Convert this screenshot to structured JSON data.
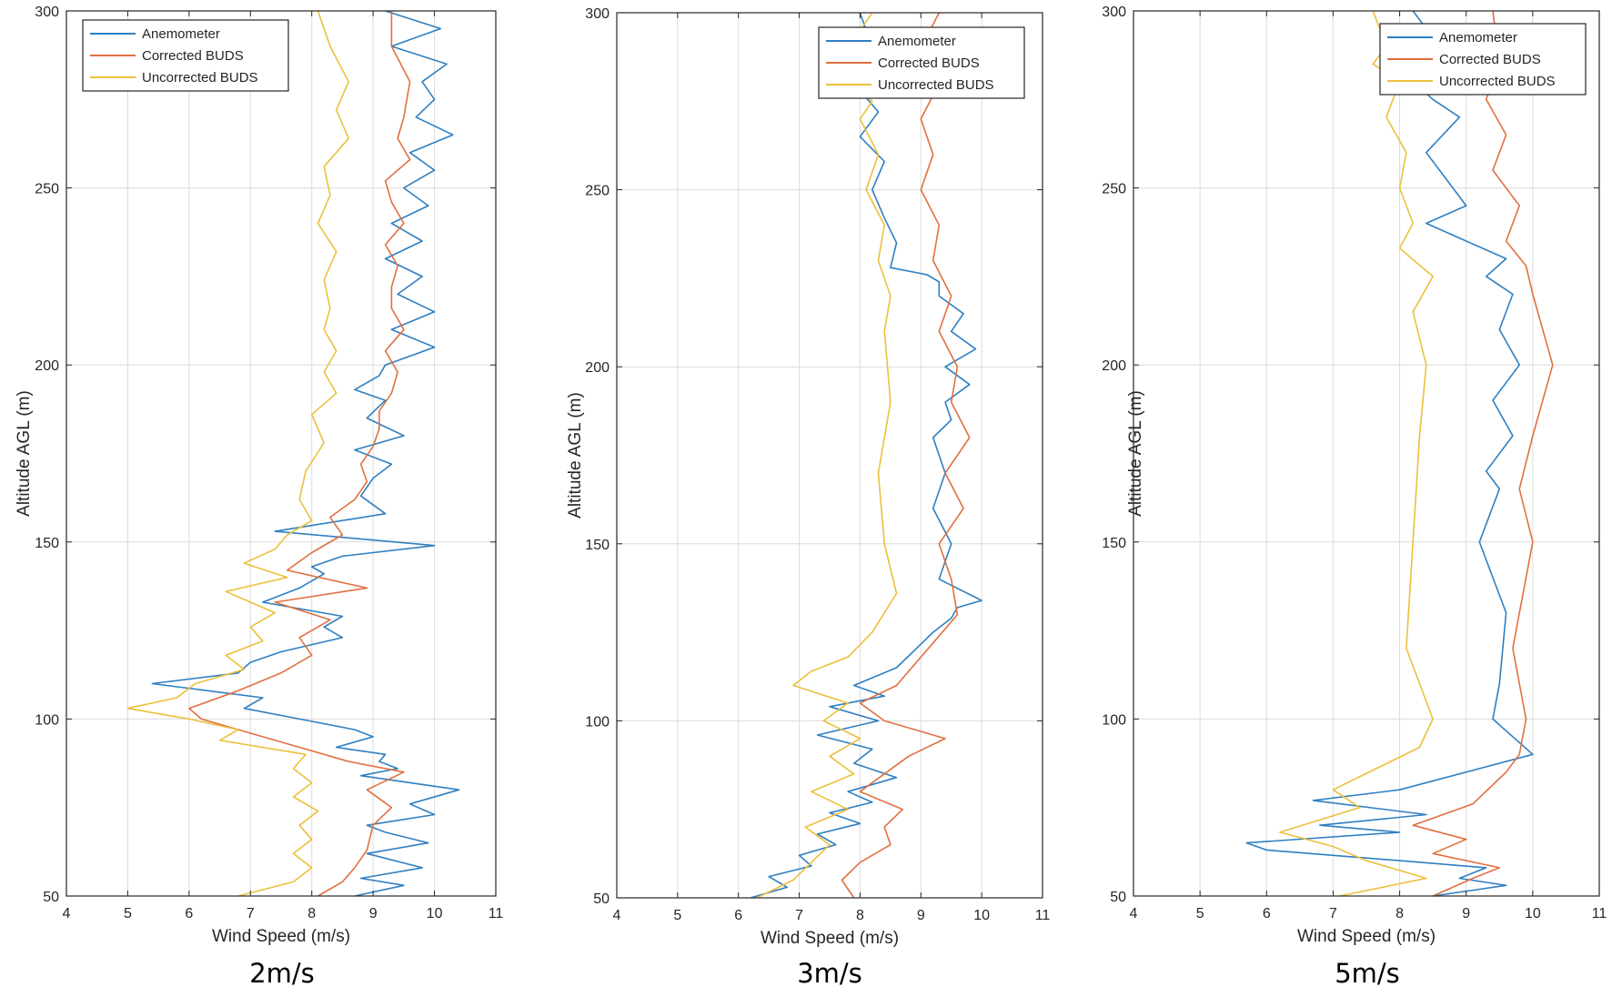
{
  "figure": {
    "colors": {
      "anemometer": "#2f7fc1",
      "corrected": "#e07040",
      "uncorrected": "#ecc03c",
      "axis": "#262626",
      "grid": "#dcdcdc"
    }
  },
  "chart_data": [
    {
      "type": "line",
      "caption": "2m/s",
      "xlabel": "Wind Speed (m/s)",
      "ylabel": "Altitude AGL (m)",
      "xlim": [
        4,
        11
      ],
      "ylim": [
        50,
        300
      ],
      "xticks": [
        4,
        5,
        6,
        7,
        8,
        9,
        10,
        11
      ],
      "yticks": [
        50,
        100,
        150,
        200,
        250,
        300
      ],
      "grid": true,
      "legend_position": "top-left",
      "series": [
        {
          "name": "Anemometer",
          "color": "#2f7fc1",
          "wind_speed": [
            8.7,
            9.5,
            8.8,
            9.8,
            8.9,
            9.9,
            9.2,
            8.9,
            10.0,
            9.6,
            10.4,
            8.8,
            9.4,
            9.1,
            9.2,
            8.4,
            9.0,
            8.7,
            7.8,
            6.9,
            7.2,
            5.4,
            6.8,
            7.0,
            7.5,
            8.5,
            8.2,
            8.5,
            7.2,
            7.8,
            8.2,
            8.0,
            8.5,
            10.0,
            7.4,
            9.2,
            8.8,
            9.0,
            9.3,
            8.7,
            9.5,
            8.9,
            9.2,
            8.7,
            9.1,
            9.2,
            10.0,
            9.3,
            10.0,
            9.4,
            9.8,
            9.2,
            9.8,
            9.3,
            9.9,
            9.5,
            10.0,
            9.6,
            10.3,
            9.7,
            10.0,
            9.8,
            10.2,
            9.3,
            10.1,
            9.2
          ],
          "altitude": [
            50,
            53,
            55,
            58,
            62,
            65,
            68,
            70,
            73,
            76,
            80,
            84,
            86,
            88,
            90,
            92,
            95,
            97,
            100,
            103,
            106,
            110,
            113,
            116,
            119,
            123,
            126,
            129,
            133,
            137,
            141,
            143,
            146,
            149,
            153,
            158,
            163,
            168,
            172,
            176,
            180,
            185,
            190,
            193,
            197,
            200,
            205,
            210,
            215,
            220,
            225,
            230,
            235,
            240,
            245,
            250,
            255,
            260,
            265,
            270,
            275,
            280,
            285,
            290,
            295,
            300
          ]
        },
        {
          "name": "Corrected BUDS",
          "color": "#e07040",
          "wind_speed": [
            8.1,
            8.5,
            8.7,
            8.9,
            9.0,
            9.3,
            8.9,
            9.5,
            8.6,
            7.8,
            7.0,
            6.2,
            6.0,
            6.8,
            7.5,
            8.0,
            7.8,
            8.3,
            7.4,
            8.9,
            7.6,
            8.0,
            8.5,
            8.3,
            8.7,
            8.9,
            8.8,
            9.0,
            9.1,
            9.1,
            9.3,
            9.4,
            9.2,
            9.5,
            9.3,
            9.3,
            9.4,
            9.2,
            9.5,
            9.3,
            9.2,
            9.6,
            9.4,
            9.5,
            9.6,
            9.3,
            9.3
          ],
          "altitude": [
            50,
            54,
            58,
            63,
            70,
            75,
            80,
            85,
            88,
            92,
            96,
            100,
            103,
            108,
            113,
            118,
            123,
            128,
            133,
            137,
            142,
            147,
            152,
            157,
            162,
            167,
            172,
            177,
            182,
            187,
            192,
            198,
            204,
            210,
            216,
            222,
            228,
            234,
            240,
            246,
            252,
            258,
            264,
            270,
            280,
            290,
            300
          ]
        },
        {
          "name": "Uncorrected BUDS",
          "color": "#ecc03c",
          "wind_speed": [
            6.8,
            7.7,
            8.0,
            7.7,
            8.0,
            7.8,
            8.1,
            7.7,
            8.0,
            7.7,
            7.9,
            6.5,
            6.8,
            6.0,
            5.0,
            5.8,
            6.1,
            6.9,
            6.6,
            7.2,
            7.0,
            7.4,
            6.6,
            7.6,
            6.9,
            7.4,
            7.6,
            8.0,
            7.8,
            7.9,
            8.2,
            8.0,
            8.4,
            8.2,
            8.4,
            8.2,
            8.3,
            8.2,
            8.4,
            8.1,
            8.3,
            8.2,
            8.6,
            8.4,
            8.6,
            8.3,
            8.1
          ],
          "altitude": [
            50,
            54,
            58,
            62,
            66,
            70,
            74,
            78,
            82,
            86,
            90,
            94,
            97,
            100,
            103,
            106,
            110,
            114,
            118,
            122,
            126,
            130,
            136,
            140,
            144,
            148,
            152,
            156,
            162,
            170,
            178,
            186,
            192,
            198,
            204,
            210,
            216,
            224,
            232,
            240,
            248,
            256,
            264,
            272,
            280,
            290,
            300
          ]
        }
      ]
    },
    {
      "type": "line",
      "caption": "3m/s",
      "xlabel": "Wind Speed (m/s)",
      "ylabel": "Altitude AGL (m)",
      "xlim": [
        4,
        11
      ],
      "ylim": [
        50,
        300
      ],
      "xticks": [
        4,
        5,
        6,
        7,
        8,
        9,
        10,
        11
      ],
      "yticks": [
        50,
        100,
        150,
        200,
        250,
        300
      ],
      "grid": true,
      "legend_position": "top-right",
      "series": [
        {
          "name": "Anemometer",
          "color": "#2f7fc1",
          "wind_speed": [
            6.2,
            6.8,
            6.5,
            7.2,
            7.0,
            7.6,
            7.3,
            8.0,
            7.5,
            8.2,
            7.8,
            8.6,
            7.9,
            8.2,
            7.3,
            8.3,
            7.5,
            8.4,
            7.9,
            8.6,
            8.9,
            9.2,
            9.5,
            9.6,
            10.0,
            9.3,
            9.5,
            9.2,
            9.4,
            9.2,
            9.5,
            9.4,
            9.8,
            9.4,
            9.9,
            9.5,
            9.7,
            9.3,
            9.3,
            9.1,
            8.5,
            8.6,
            8.4,
            8.2,
            8.4,
            8.0,
            8.3,
            7.9,
            8.2,
            8.0
          ],
          "altitude": [
            50,
            53,
            56,
            59,
            62,
            65,
            68,
            71,
            74,
            77,
            80,
            84,
            88,
            92,
            96,
            100,
            104,
            107,
            110,
            115,
            120,
            125,
            129,
            132,
            134,
            140,
            150,
            160,
            170,
            180,
            185,
            190,
            195,
            200,
            205,
            210,
            215,
            220,
            224,
            226,
            228,
            235,
            242,
            250,
            258,
            265,
            272,
            280,
            290,
            300
          ]
        },
        {
          "name": "Corrected BUDS",
          "color": "#e07040",
          "wind_speed": [
            7.9,
            7.7,
            8.0,
            8.5,
            8.4,
            8.7,
            8.0,
            8.8,
            9.4,
            8.4,
            8.0,
            8.6,
            8.9,
            9.2,
            9.6,
            9.5,
            9.3,
            9.7,
            9.4,
            9.8,
            9.5,
            9.6,
            9.3,
            9.5,
            9.2,
            9.3,
            9.0,
            9.2,
            9.0,
            9.3,
            9.0,
            9.3
          ],
          "altitude": [
            50,
            55,
            60,
            65,
            70,
            75,
            80,
            90,
            95,
            100,
            105,
            110,
            116,
            122,
            130,
            140,
            150,
            160,
            170,
            180,
            190,
            200,
            210,
            220,
            230,
            240,
            250,
            260,
            270,
            280,
            290,
            300
          ]
        },
        {
          "name": "Uncorrected BUDS",
          "color": "#ecc03c",
          "wind_speed": [
            6.3,
            6.9,
            7.2,
            7.5,
            7.1,
            7.8,
            7.2,
            7.9,
            7.5,
            8.0,
            7.4,
            7.8,
            6.9,
            7.2,
            7.8,
            8.2,
            8.6,
            8.4,
            8.3,
            8.5,
            8.4,
            8.5,
            8.3,
            8.4,
            8.1,
            8.3,
            8.0,
            8.2,
            7.9,
            8.1,
            7.8,
            8.2
          ],
          "altitude": [
            50,
            55,
            60,
            65,
            70,
            75,
            80,
            85,
            90,
            95,
            100,
            105,
            110,
            114,
            118,
            125,
            136,
            150,
            170,
            190,
            210,
            220,
            230,
            240,
            250,
            260,
            270,
            275,
            280,
            285,
            290,
            300
          ]
        }
      ]
    },
    {
      "type": "line",
      "caption": "5m/s",
      "xlabel": "Wind Speed (m/s)",
      "ylabel": "Altitude AGL (m)",
      "xlim": [
        4,
        11
      ],
      "ylim": [
        50,
        300
      ],
      "xticks": [
        4,
        5,
        6,
        7,
        8,
        9,
        10,
        11
      ],
      "yticks": [
        50,
        100,
        150,
        200,
        250,
        300
      ],
      "grid": true,
      "legend_position": "top-right",
      "series": [
        {
          "name": "Anemometer",
          "color": "#2f7fc1",
          "wind_speed": [
            8.5,
            9.6,
            8.9,
            9.3,
            8.0,
            6.0,
            5.7,
            8.0,
            6.8,
            8.4,
            6.7,
            8.0,
            10.0,
            9.4,
            9.5,
            9.6,
            9.2,
            9.5,
            9.3,
            9.7,
            9.4,
            9.8,
            9.5,
            9.7,
            9.3,
            9.6,
            9.0,
            8.4,
            9.0,
            8.8,
            8.4,
            8.9,
            8.5,
            8.2,
            8.0,
            8.4,
            8.2
          ],
          "altitude": [
            50,
            53,
            55,
            58,
            60,
            63,
            65,
            68,
            70,
            73,
            77,
            80,
            90,
            100,
            110,
            130,
            150,
            165,
            170,
            180,
            190,
            200,
            210,
            220,
            225,
            230,
            235,
            240,
            245,
            250,
            260,
            270,
            275,
            280,
            290,
            295,
            300
          ]
        },
        {
          "name": "Corrected BUDS",
          "color": "#e07040",
          "wind_speed": [
            8.5,
            9.1,
            9.5,
            8.5,
            9.0,
            8.2,
            9.1,
            9.6,
            9.8,
            9.9,
            9.7,
            10.0,
            9.8,
            10.0,
            10.3,
            10.0,
            9.9,
            9.6,
            9.8,
            9.4,
            9.6,
            9.3,
            9.5,
            9.4
          ],
          "altitude": [
            50,
            55,
            58,
            62,
            66,
            70,
            76,
            85,
            90,
            100,
            120,
            150,
            165,
            180,
            200,
            220,
            228,
            235,
            245,
            255,
            265,
            275,
            285,
            300
          ]
        },
        {
          "name": "Uncorrected BUDS",
          "color": "#ecc03c",
          "wind_speed": [
            7.1,
            8.4,
            7.5,
            7.0,
            6.2,
            7.4,
            7.0,
            8.3,
            8.5,
            8.1,
            8.2,
            8.3,
            8.4,
            8.2,
            8.5,
            8.0,
            8.2,
            8.0,
            8.1,
            7.8,
            8.0,
            7.6,
            7.8,
            7.6
          ],
          "altitude": [
            50,
            55,
            60,
            64,
            68,
            75,
            80,
            92,
            100,
            120,
            150,
            180,
            200,
            215,
            225,
            233,
            240,
            250,
            260,
            270,
            280,
            285,
            290,
            300
          ]
        }
      ]
    }
  ]
}
